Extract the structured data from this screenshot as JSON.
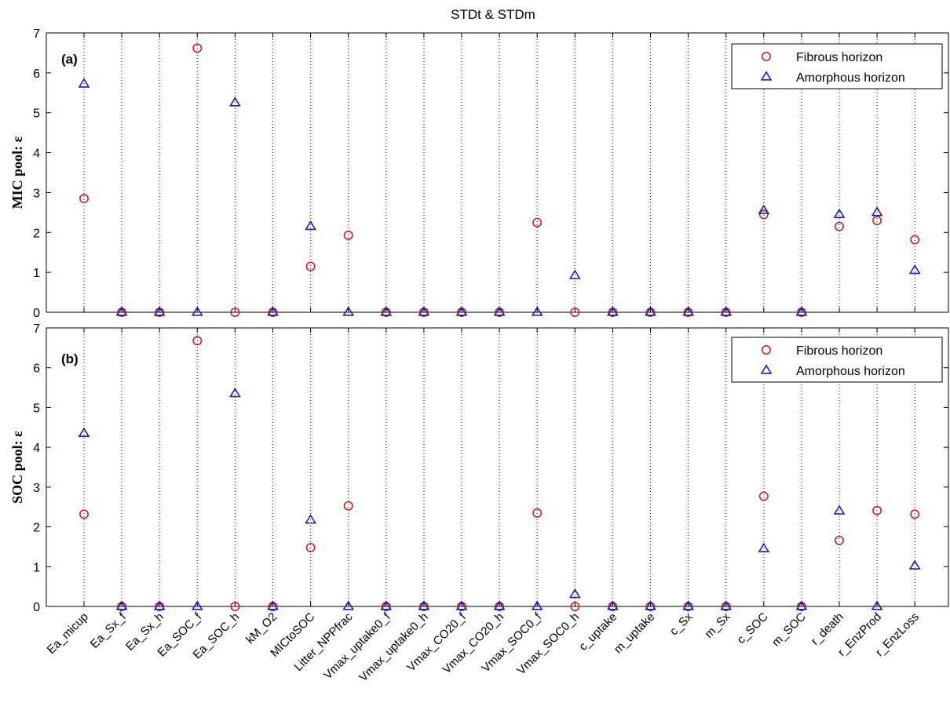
{
  "chart_data": {
    "type": "scatter",
    "title": "STDt & STDm",
    "categories": [
      "Ea_micup",
      "Ea_Sx_f",
      "Ea_Sx_h",
      "Ea_SOC_f",
      "Ea_SOC_h",
      "kM_O2",
      "MICtoSOC",
      "Litter_NPPfrac",
      "Vmax_uptake0_f",
      "Vmax_uptake0_h",
      "Vmax_CO20_f",
      "Vmax_CO20_h",
      "Vmax_SOC0_f",
      "Vmax_SOC0_h",
      "c_uptake",
      "m_uptake",
      "c_Sx",
      "m_Sx",
      "c_SOC",
      "m_SOC",
      "r_death",
      "r_EnzProd",
      "r_EnzLoss"
    ],
    "colors": {
      "fibrous": "#cc2222",
      "amorphous": "#1f1fb8"
    },
    "panels": [
      {
        "tag": "(a)",
        "ylabel": "MIC pool: ε",
        "ylim": [
          0,
          7
        ],
        "yticks": [
          "0",
          "1",
          "2",
          "3",
          "4",
          "5",
          "6",
          "7"
        ],
        "legend_position": "top-right",
        "series": [
          {
            "name": "Fibrous horizon",
            "marker": "circle",
            "values": [
              2.85,
              0,
              0,
              6.62,
              0,
              0,
              1.15,
              1.93,
              0,
              0,
              0,
              0,
              2.25,
              0,
              0,
              0,
              0,
              0,
              2.45,
              0,
              2.15,
              2.3,
              1.82
            ]
          },
          {
            "name": "Amorphous horizon",
            "marker": "triangle",
            "values": [
              5.72,
              0,
              0,
              0,
              5.25,
              0,
              2.15,
              0,
              0,
              0,
              0,
              0,
              0,
              0.92,
              0,
              0,
              0,
              0,
              2.55,
              0,
              2.45,
              2.5,
              1.05
            ]
          }
        ]
      },
      {
        "tag": "(b)",
        "ylabel": "SOC pool: ε",
        "ylim": [
          0,
          7
        ],
        "yticks": [
          "0",
          "1",
          "2",
          "3",
          "4",
          "5",
          "6",
          "7"
        ],
        "legend_position": "top-right",
        "series": [
          {
            "name": "Fibrous horizon",
            "marker": "circle",
            "values": [
              2.32,
              0,
              0,
              6.68,
              0,
              0,
              1.48,
              2.53,
              0,
              0,
              0,
              0,
              2.35,
              0,
              0,
              0,
              0,
              0,
              2.77,
              0,
              1.66,
              2.41,
              2.32
            ]
          },
          {
            "name": "Amorphous horizon",
            "marker": "triangle",
            "values": [
              4.35,
              0,
              0,
              0,
              5.35,
              0,
              2.17,
              0,
              0,
              0,
              0,
              0,
              0,
              0.3,
              0,
              0,
              0,
              0,
              1.45,
              0,
              2.4,
              0,
              1.02
            ]
          }
        ]
      }
    ]
  }
}
